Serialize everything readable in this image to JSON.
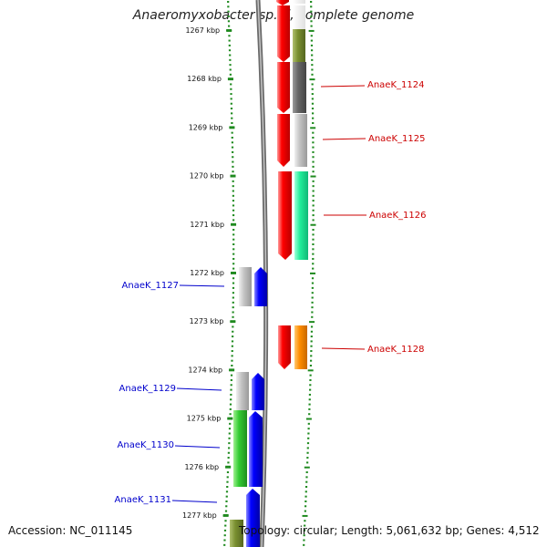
{
  "title": "Anaeromyxobacter sp. K, complete genome",
  "footer": {
    "accession": "Accession: NC_011145",
    "topology": "Topology: circular; Length: 5,061,632 bp; Genes: 4,512"
  },
  "axis": {
    "ticks": [
      "1267 kbp",
      "1268 kbp",
      "1269 kbp",
      "1270 kbp",
      "1271 kbp",
      "1272 kbp",
      "1273 kbp",
      "1274 kbp",
      "1275 kbp",
      "1276 kbp",
      "1277 kbp"
    ]
  },
  "colors": {
    "tick_green": "#1f8a1f",
    "reverse_strand": "#ff0000",
    "forward_strand": "#0000ff",
    "reverse_label": "#cc0000",
    "forward_label": "#0000cc",
    "backbone": "#8a8a8a"
  },
  "genes": {
    "right": [
      {
        "name": "AnaeK_1124"
      },
      {
        "name": "AnaeK_1125"
      },
      {
        "name": "AnaeK_1126"
      },
      {
        "name": "AnaeK_1128"
      }
    ],
    "left": [
      {
        "name": "AnaeK_1127"
      },
      {
        "name": "AnaeK_1129"
      },
      {
        "name": "AnaeK_1130"
      },
      {
        "name": "AnaeK_1131"
      }
    ]
  }
}
